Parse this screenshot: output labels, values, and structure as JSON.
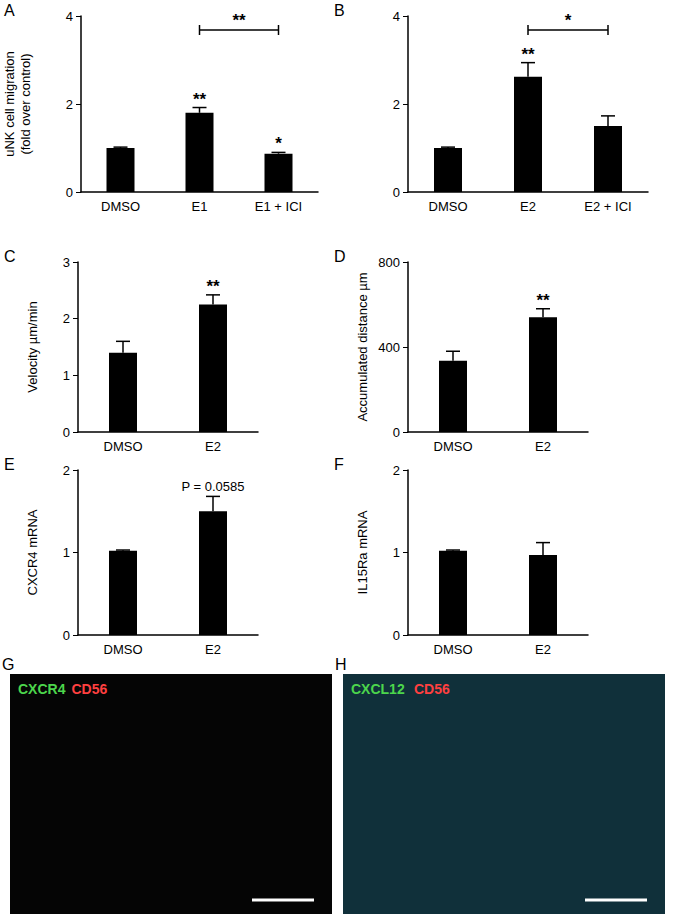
{
  "chart_data": [
    {
      "type": "bar",
      "panel": "A",
      "y_label": "uNK cell migration\n(fold over control)",
      "categories": [
        "DMSO",
        "E1",
        "E1 + ICI"
      ],
      "values": [
        1.0,
        1.8,
        0.87
      ],
      "errors": [
        0.02,
        0.12,
        0.03
      ],
      "color": "#000000",
      "ylim": [
        0,
        4
      ],
      "yticks": [
        0,
        2,
        4
      ],
      "grid": false,
      "annotations": [
        {
          "text": "**",
          "category": "E1"
        },
        {
          "text": "*",
          "category": "E1 + ICI"
        },
        {
          "text": "**",
          "from": "E1",
          "to": "E1 + ICI"
        }
      ]
    },
    {
      "type": "bar",
      "panel": "B",
      "y_label": "",
      "categories": [
        "DMSO",
        "E2",
        "E2 + ICI"
      ],
      "values": [
        1.0,
        2.62,
        1.5
      ],
      "errors": [
        0.02,
        0.32,
        0.23
      ],
      "color": "#000000",
      "ylim": [
        0,
        4
      ],
      "yticks": [
        0,
        2,
        4
      ],
      "grid": false,
      "annotations": [
        {
          "text": "**",
          "category": "E2"
        },
        {
          "text": "*",
          "from": "E2",
          "to": "E2 + ICI"
        }
      ]
    },
    {
      "type": "bar",
      "panel": "C",
      "y_label": "Velocity µm/min",
      "categories": [
        "DMSO",
        "E2"
      ],
      "values": [
        1.4,
        2.25
      ],
      "errors": [
        0.2,
        0.17
      ],
      "color": "#000000",
      "ylim": [
        0,
        3
      ],
      "yticks": [
        0,
        1,
        2,
        3
      ],
      "grid": false,
      "annotations": [
        {
          "text": "**",
          "category": "E2"
        }
      ]
    },
    {
      "type": "bar",
      "panel": "D",
      "y_label": "Accumulated distance µm",
      "categories": [
        "DMSO",
        "E2"
      ],
      "values": [
        335,
        540
      ],
      "errors": [
        45,
        40
      ],
      "color": "#000000",
      "ylim": [
        0,
        800
      ],
      "yticks": [
        0,
        400,
        800
      ],
      "grid": false,
      "annotations": [
        {
          "text": "**",
          "category": "E2"
        }
      ]
    },
    {
      "type": "bar",
      "panel": "E",
      "y_label": "CXCR4 mRNA",
      "categories": [
        "DMSO",
        "E2"
      ],
      "values": [
        1.02,
        1.5
      ],
      "errors": [
        0.01,
        0.18
      ],
      "color": "#000000",
      "ylim": [
        0,
        2
      ],
      "yticks": [
        0,
        1,
        2
      ],
      "grid": false,
      "annotations": [
        {
          "text": "P = 0.0585",
          "category": "E2"
        }
      ]
    },
    {
      "type": "bar",
      "panel": "F",
      "y_label": "IL15Ra mRNA",
      "categories": [
        "DMSO",
        "E2"
      ],
      "values": [
        1.02,
        0.97
      ],
      "errors": [
        0.01,
        0.15
      ],
      "color": "#000000",
      "ylim": [
        0,
        2
      ],
      "yticks": [
        0,
        1,
        2
      ],
      "grid": false,
      "annotations": []
    },
    {
      "type": "image",
      "panel": "G",
      "color": "#050505",
      "labels": [
        {
          "text": "CXCR4",
          "color": "#4cd64c"
        },
        {
          "text": "CD56",
          "color": "#ff4040"
        }
      ]
    },
    {
      "type": "image",
      "panel": "H",
      "color": "#10303a",
      "labels": [
        {
          "text": "CXCL12",
          "color": "#4cd64c"
        },
        {
          "text": "CD56",
          "color": "#ff4040"
        }
      ]
    }
  ]
}
